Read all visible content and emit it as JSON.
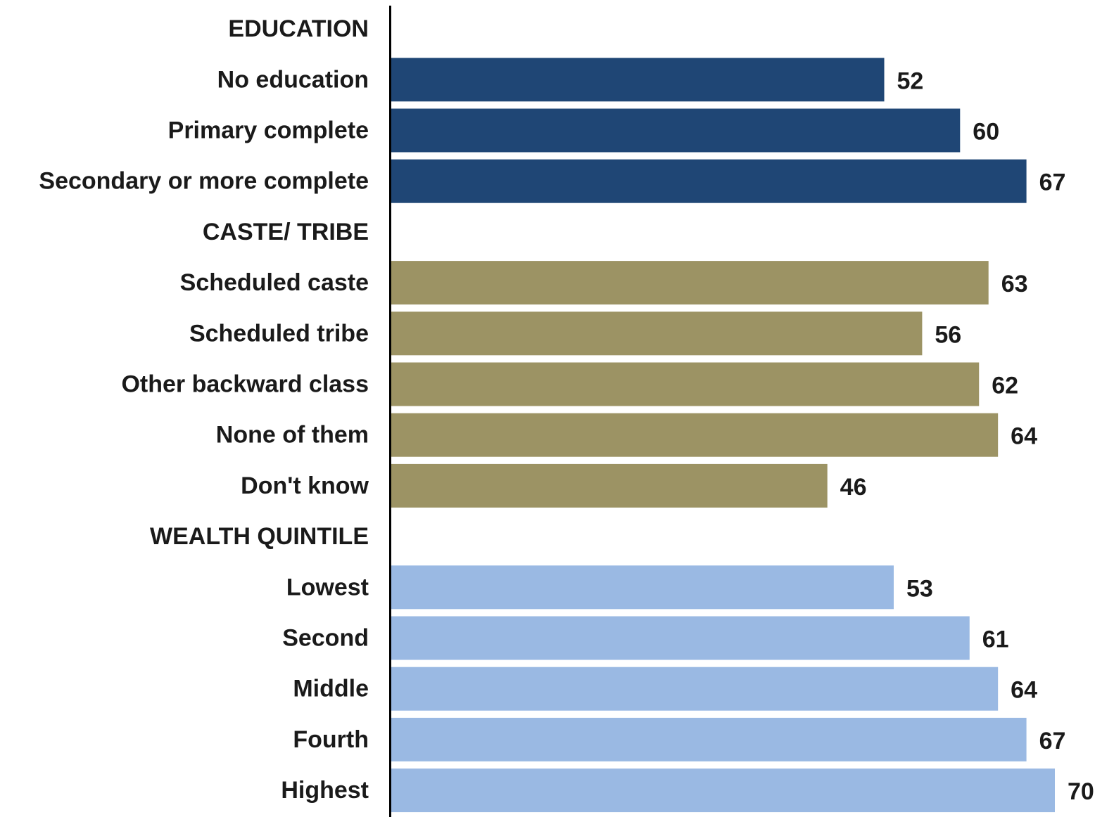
{
  "chart_data": {
    "type": "bar",
    "orientation": "horizontal",
    "grid": false,
    "legend": "none",
    "xlim": [
      0,
      70
    ],
    "groups": [
      {
        "name": "EDUCATION",
        "color": "#1f4675",
        "items": [
          {
            "label": "No education",
            "value": 52
          },
          {
            "label": "Primary complete",
            "value": 60
          },
          {
            "label": "Secondary or more complete",
            "value": 67
          }
        ]
      },
      {
        "name": "CASTE/ TRIBE",
        "color": "#9c9364",
        "items": [
          {
            "label": "Scheduled caste",
            "value": 63
          },
          {
            "label": "Scheduled tribe",
            "value": 56
          },
          {
            "label": "Other backward class",
            "value": 62
          },
          {
            "label": "None of them",
            "value": 64
          },
          {
            "label": "Don't know",
            "value": 46
          }
        ]
      },
      {
        "name": "WEALTH QUINTILE",
        "color": "#9ab9e3",
        "items": [
          {
            "label": "Lowest",
            "value": 53
          },
          {
            "label": "Second",
            "value": 61
          },
          {
            "label": "Middle",
            "value": 64
          },
          {
            "label": "Fourth",
            "value": 67
          },
          {
            "label": "Highest",
            "value": 70
          }
        ]
      }
    ]
  }
}
